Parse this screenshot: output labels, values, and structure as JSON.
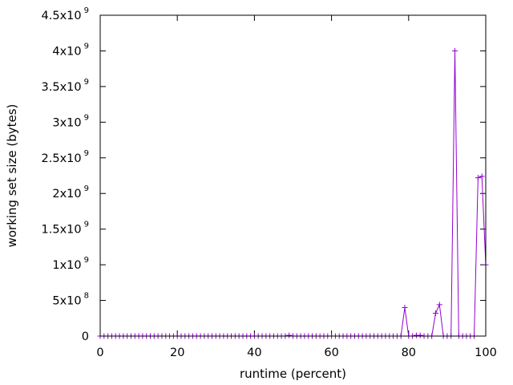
{
  "chart_data": {
    "type": "line",
    "title": "",
    "xlabel": "runtime (percent)",
    "ylabel": "working set size (bytes)",
    "xlim": [
      0,
      100
    ],
    "ylim": [
      0,
      4500000000
    ],
    "grid": false,
    "legend": "none",
    "x_ticks": [
      {
        "value": 0,
        "label": "0"
      },
      {
        "value": 20,
        "label": "20"
      },
      {
        "value": 40,
        "label": "40"
      },
      {
        "value": 60,
        "label": "60"
      },
      {
        "value": 80,
        "label": "80"
      },
      {
        "value": 100,
        "label": "100"
      }
    ],
    "y_ticks": [
      {
        "value": 0,
        "mantissa": "0",
        "exp": ""
      },
      {
        "value": 500000000,
        "mantissa": "5x10",
        "exp": "8"
      },
      {
        "value": 1000000000,
        "mantissa": "1x10",
        "exp": "9"
      },
      {
        "value": 1500000000,
        "mantissa": "1.5x10",
        "exp": "9"
      },
      {
        "value": 2000000000,
        "mantissa": "2x10",
        "exp": "9"
      },
      {
        "value": 2500000000,
        "mantissa": "2.5x10",
        "exp": "9"
      },
      {
        "value": 3000000000,
        "mantissa": "3x10",
        "exp": "9"
      },
      {
        "value": 3500000000,
        "mantissa": "3.5x10",
        "exp": "9"
      },
      {
        "value": 4000000000,
        "mantissa": "4x10",
        "exp": "9"
      },
      {
        "value": 4500000000,
        "mantissa": "4.5x10",
        "exp": "9"
      }
    ],
    "series": [
      {
        "color": "#9400d3",
        "marker": "plus",
        "x": [
          0,
          1,
          2,
          3,
          4,
          5,
          6,
          7,
          8,
          9,
          10,
          11,
          12,
          13,
          14,
          15,
          16,
          17,
          18,
          19,
          20,
          21,
          22,
          23,
          24,
          25,
          26,
          27,
          28,
          29,
          30,
          31,
          32,
          33,
          34,
          35,
          36,
          37,
          38,
          39,
          40,
          41,
          42,
          43,
          44,
          45,
          46,
          47,
          48,
          49,
          50,
          51,
          52,
          53,
          54,
          55,
          56,
          57,
          58,
          59,
          60,
          61,
          62,
          63,
          64,
          65,
          66,
          67,
          68,
          69,
          70,
          71,
          72,
          73,
          74,
          75,
          76,
          77,
          78,
          79,
          80,
          81,
          82,
          83,
          84,
          85,
          86,
          87,
          88,
          89,
          90,
          91,
          92,
          93,
          94,
          95,
          96,
          97,
          98,
          99,
          100
        ],
        "y": [
          0,
          0,
          0,
          0,
          0,
          0,
          0,
          0,
          0,
          0,
          0,
          0,
          0,
          0,
          0,
          0,
          0,
          0,
          0,
          0,
          0,
          0,
          0,
          0,
          0,
          0,
          0,
          0,
          0,
          0,
          0,
          0,
          0,
          0,
          0,
          0,
          0,
          0,
          0,
          0,
          0,
          0,
          0,
          0,
          0,
          0,
          0,
          0,
          0,
          10000000,
          0,
          0,
          0,
          0,
          0,
          0,
          0,
          0,
          0,
          0,
          0,
          0,
          0,
          0,
          0,
          0,
          0,
          0,
          0,
          0,
          0,
          0,
          0,
          0,
          0,
          0,
          0,
          0,
          0,
          400000000,
          0,
          0,
          10000000,
          10000000,
          0,
          0,
          0,
          320000000,
          440000000,
          0,
          0,
          0,
          4000000000,
          0,
          0,
          0,
          0,
          0,
          2220000000,
          2240000000,
          1000000000
        ]
      }
    ]
  }
}
